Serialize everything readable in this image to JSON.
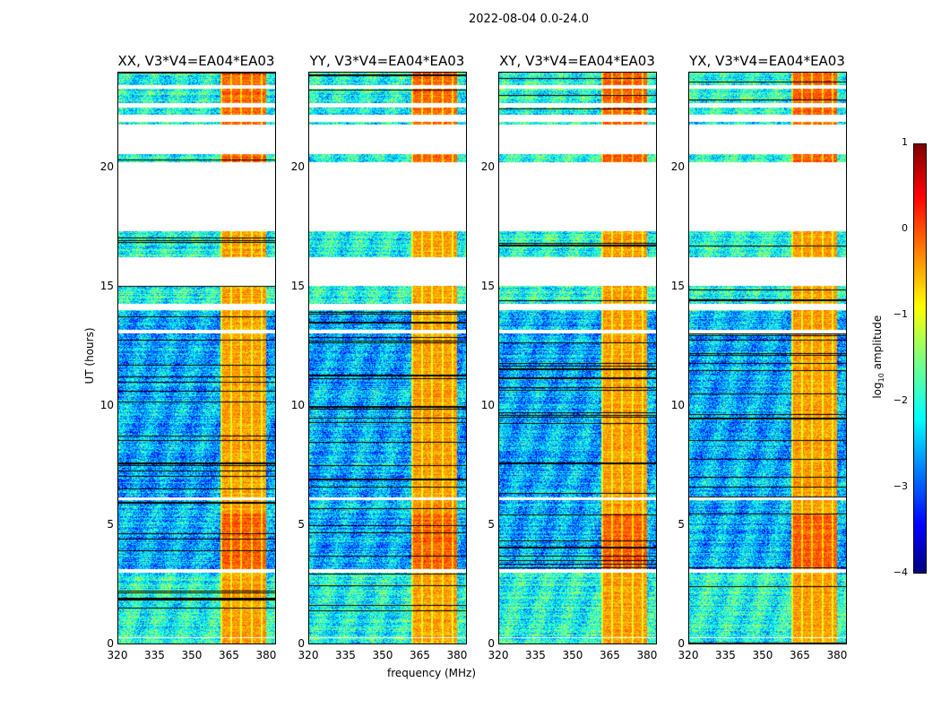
{
  "chart_data": {
    "type": "heatmap",
    "suptitle": "2022-08-04 0.0-24.0",
    "panels": [
      {
        "title": "XX, V3*V4=EA04*EA03"
      },
      {
        "title": "YY, V3*V4=EA04*EA03"
      },
      {
        "title": "XY, V3*V4=EA04*EA03"
      },
      {
        "title": "YX, V3*V4=EA04*EA03"
      }
    ],
    "xlabel": "frequency (MHz)",
    "ylabel": "UT (hours)",
    "xlim": [
      320,
      384
    ],
    "ylim": [
      0,
      24
    ],
    "xticks": [
      "320",
      "335",
      "350",
      "365",
      "380"
    ],
    "xtick_values": [
      320,
      335,
      350,
      365,
      380
    ],
    "yticks": [
      "0",
      "5",
      "10",
      "15",
      "20"
    ],
    "ytick_values": [
      0,
      5,
      10,
      15,
      20
    ],
    "flagged_time_ranges_hours": [
      [
        0.25,
        0.3
      ],
      [
        3.0,
        3.15
      ],
      [
        6.05,
        6.15
      ],
      [
        13.05,
        13.2
      ],
      [
        14.05,
        14.3
      ],
      [
        15.05,
        16.25
      ],
      [
        17.35,
        20.25
      ],
      [
        20.6,
        21.85
      ],
      [
        21.95,
        22.25
      ],
      [
        22.55,
        22.75
      ],
      [
        23.35,
        23.5
      ]
    ],
    "high_amplitude_band_MHz": [
      361.5,
      380
    ],
    "background_log_amplitude": -2.3,
    "band_log_amplitude": -0.4,
    "colorbar": {
      "label": "log10 amplitude",
      "label_main": "log",
      "label_sub": "10",
      "label_rest": " amplitude",
      "range": [
        -4,
        1
      ],
      "ticks": [
        "−4",
        "−3",
        "−2",
        "−1",
        "0",
        "1"
      ],
      "tick_values": [
        -4,
        -3,
        -2,
        -1,
        0,
        1
      ],
      "colormap": "jet"
    }
  }
}
